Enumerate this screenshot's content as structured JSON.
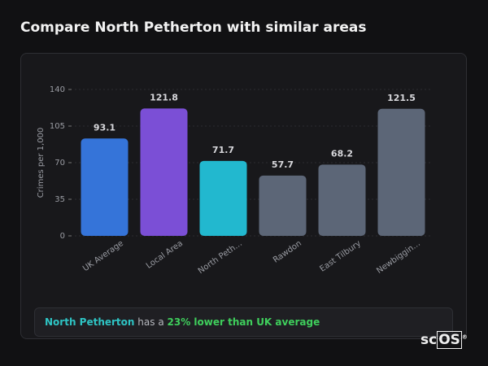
{
  "chart_data": {
    "type": "bar",
    "title": "Compare North Petherton with similar areas",
    "ylabel": "Crimes per 1,000",
    "categories": [
      "UK Average",
      "Local Area",
      "North Peth…",
      "Rawdon",
      "East Tilbury",
      "Newbiggin…"
    ],
    "values": [
      93.1,
      121.8,
      71.7,
      57.7,
      68.2,
      121.5
    ],
    "colors": [
      "#3574d9",
      "#7b4fd6",
      "#22b8cf",
      "#5c6677",
      "#5c6677",
      "#5c6677"
    ],
    "ylim": [
      0,
      140
    ],
    "yticks": [
      0,
      35,
      70,
      105,
      140
    ],
    "grid": true
  },
  "summary": {
    "area": "North Petherton",
    "text": "has a",
    "highlight": "23% lower than UK average"
  },
  "logo": {
    "prefix": "sc",
    "boxed": "OS",
    "mark": "®"
  }
}
